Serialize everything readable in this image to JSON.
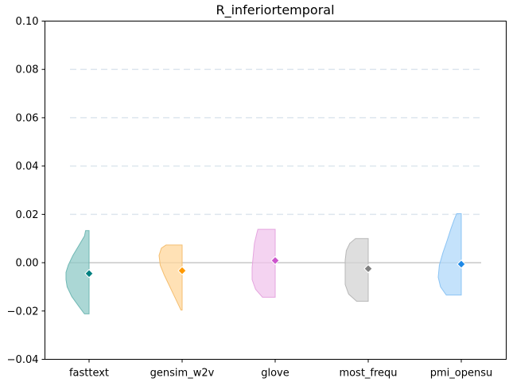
{
  "chart_data": {
    "type": "violin",
    "title": "R_inferiortemporal",
    "xlabel": "",
    "ylabel": "",
    "ylim": [
      -0.04,
      0.1
    ],
    "yticks": [
      -0.04,
      -0.02,
      0.0,
      0.02,
      0.04,
      0.06,
      0.08,
      0.1
    ],
    "ytick_labels": [
      "−0.04",
      "−0.02",
      "0.00",
      "0.02",
      "0.04",
      "0.06",
      "0.08",
      "0.10"
    ],
    "grid_y_dashed": [
      0.02,
      0.04,
      0.06,
      0.08
    ],
    "reference_line_y": 0.0,
    "categories": [
      "fasttext",
      "gensim_w2v",
      "glove",
      "most_frequ",
      "pmi_opensu"
    ],
    "series": [
      {
        "category": "fasttext",
        "fill_color": "#8fcac7",
        "edge_color": "#70b8b4",
        "marker_color": "#008080",
        "min": -0.0212,
        "max": 0.0133,
        "center": -0.0045,
        "profile": [
          [
            -0.0212,
            0.2
          ],
          [
            -0.018,
            0.45
          ],
          [
            -0.014,
            0.75
          ],
          [
            -0.01,
            0.95
          ],
          [
            -0.007,
            1.0
          ],
          [
            -0.004,
            1.0
          ],
          [
            -0.001,
            0.9
          ],
          [
            0.003,
            0.7
          ],
          [
            0.007,
            0.45
          ],
          [
            0.011,
            0.2
          ],
          [
            0.0133,
            0.15
          ]
        ]
      },
      {
        "category": "gensim_w2v",
        "fill_color": "#ffd79c",
        "edge_color": "#f4be70",
        "marker_color": "#ff9900",
        "min": -0.0196,
        "max": 0.0073,
        "center": -0.0033,
        "profile": [
          [
            -0.0196,
            0.05
          ],
          [
            -0.017,
            0.18
          ],
          [
            -0.013,
            0.38
          ],
          [
            -0.009,
            0.58
          ],
          [
            -0.005,
            0.78
          ],
          [
            -0.001,
            0.95
          ],
          [
            0.003,
            1.0
          ],
          [
            0.006,
            0.9
          ],
          [
            0.0073,
            0.7
          ]
        ]
      },
      {
        "category": "glove",
        "fill_color": "#f0c4ec",
        "edge_color": "#e5a6df",
        "marker_color": "#cc55cc",
        "min": -0.0143,
        "max": 0.0138,
        "center": 0.0009,
        "profile": [
          [
            -0.0143,
            0.55
          ],
          [
            -0.011,
            0.85
          ],
          [
            -0.007,
            1.0
          ],
          [
            -0.002,
            1.0
          ],
          [
            0.003,
            0.95
          ],
          [
            0.008,
            0.9
          ],
          [
            0.012,
            0.8
          ],
          [
            0.0138,
            0.75
          ]
        ]
      },
      {
        "category": "most_frequ",
        "fill_color": "#d3d3d3",
        "edge_color": "#b8b8b8",
        "marker_color": "#808080",
        "min": -0.016,
        "max": 0.01,
        "center": -0.0025,
        "profile": [
          [
            -0.016,
            0.5
          ],
          [
            -0.013,
            0.85
          ],
          [
            -0.009,
            1.0
          ],
          [
            -0.004,
            1.0
          ],
          [
            0.001,
            1.0
          ],
          [
            0.005,
            0.95
          ],
          [
            0.008,
            0.8
          ],
          [
            0.01,
            0.55
          ]
        ]
      },
      {
        "category": "pmi_opensu",
        "fill_color": "#b0d8fa",
        "edge_color": "#8cc4f4",
        "marker_color": "#1e88e5",
        "min": -0.0134,
        "max": 0.0203,
        "center": -0.0006,
        "profile": [
          [
            -0.0134,
            0.65
          ],
          [
            -0.01,
            0.9
          ],
          [
            -0.006,
            1.0
          ],
          [
            -0.001,
            0.95
          ],
          [
            0.004,
            0.8
          ],
          [
            0.009,
            0.62
          ],
          [
            0.014,
            0.45
          ],
          [
            0.018,
            0.3
          ],
          [
            0.0203,
            0.2
          ]
        ]
      }
    ]
  }
}
